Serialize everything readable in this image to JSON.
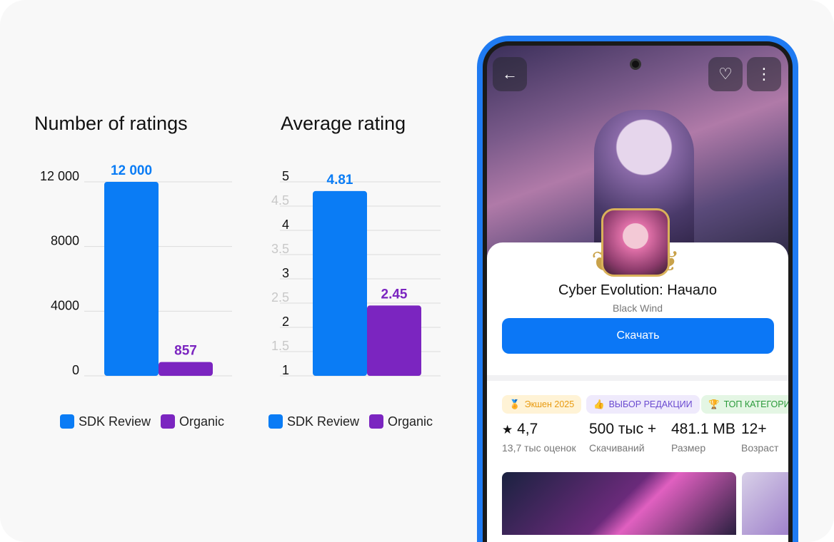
{
  "chart_data": [
    {
      "type": "bar",
      "title": "Number of ratings",
      "categories": [
        "SDK Review",
        "Organic"
      ],
      "values": [
        12000,
        857
      ],
      "data_labels": [
        "12 000",
        "857"
      ],
      "yticks": [
        "0",
        "4000",
        "8000",
        "12 000"
      ],
      "ylim": [
        0,
        12000
      ],
      "grid": true,
      "legend": "bottom",
      "colors": [
        "#0a7cf5",
        "#7b25c0"
      ]
    },
    {
      "type": "bar",
      "title": "Average rating",
      "categories": [
        "SDK Review",
        "Organic"
      ],
      "values": [
        4.81,
        2.45
      ],
      "data_labels": [
        "4.81",
        "2.45"
      ],
      "yticks": [
        "1",
        "1.5",
        "2",
        "2.5",
        "3",
        "3.5",
        "4",
        "4.5",
        "5"
      ],
      "ylim": [
        1,
        5
      ],
      "grid": true,
      "legend": "bottom",
      "colors": [
        "#0a7cf5",
        "#7b25c0"
      ]
    }
  ],
  "legend": {
    "sdk": "SDK Review",
    "organic": "Organic"
  },
  "phone": {
    "game_title": "Cyber Evolution: Начало",
    "developer": "Black Wind",
    "download_label": "Скачать",
    "chips": [
      {
        "label": "Экшен 2025",
        "icon": "medal-icon"
      },
      {
        "label": "ВЫБОР РЕДАКЦИИ",
        "icon": "thumbs-up-icon"
      },
      {
        "label": "ТОП КАТЕГОРИ",
        "icon": "trophy-icon"
      }
    ],
    "stats": [
      {
        "value": "4,7",
        "label": "13,7 тыс оценок"
      },
      {
        "value": "500 тыс +",
        "label": "Скачиваний"
      },
      {
        "value": "481.1 MB",
        "label": "Размер"
      },
      {
        "value": "12+",
        "label": "Возраст"
      }
    ],
    "icons": {
      "back": "←",
      "heart": "♡",
      "more": "⋮",
      "star": "★"
    }
  }
}
